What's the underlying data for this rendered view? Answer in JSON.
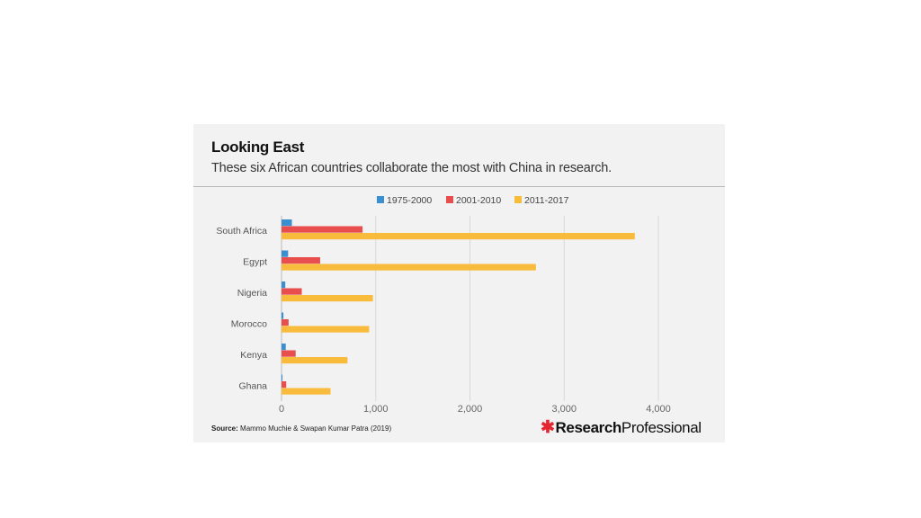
{
  "title": "Looking East",
  "subtitle": "These six African countries collaborate the most with China in research.",
  "source_label": "Source:",
  "source_text": "Mammo Muchie & Swapan Kumar Patra (2019)",
  "brand": {
    "star": "✱",
    "strong": "Research",
    "light": "Professional"
  },
  "colors": {
    "1975-2000": "#3a8fd1",
    "2001-2010": "#e84e4e",
    "2011-2017": "#f9bb3c"
  },
  "chart_data": {
    "type": "bar",
    "orientation": "horizontal",
    "categories": [
      "South Africa",
      "Egypt",
      "Nigeria",
      "Morocco",
      "Kenya",
      "Ghana"
    ],
    "series": [
      {
        "name": "1975-2000",
        "values": [
          110,
          70,
          40,
          20,
          45,
          10
        ]
      },
      {
        "name": "2001-2010",
        "values": [
          860,
          410,
          215,
          75,
          150,
          50
        ]
      },
      {
        "name": "2011-2017",
        "values": [
          3750,
          2700,
          970,
          930,
          700,
          520
        ]
      }
    ],
    "xlim": [
      0,
      4000
    ],
    "xticks": [
      0,
      1000,
      2000,
      3000,
      4000
    ],
    "xtick_labels": [
      "0",
      "1,000",
      "2,000",
      "3,000",
      "4,000"
    ],
    "grid": true,
    "legend_position": "top"
  }
}
